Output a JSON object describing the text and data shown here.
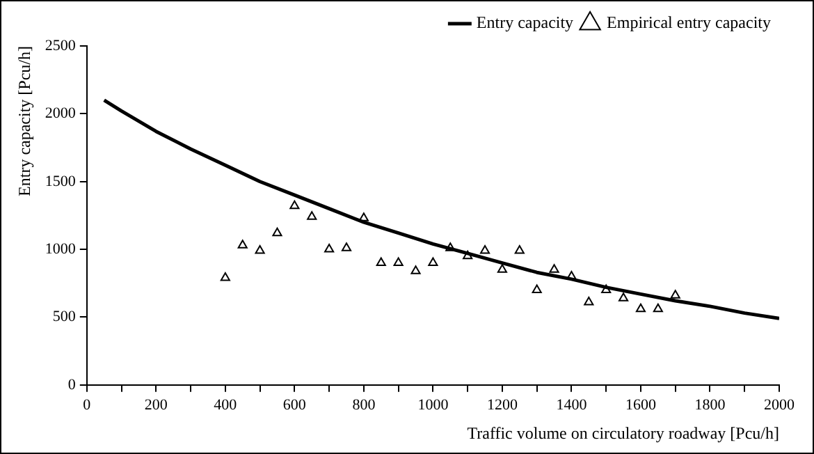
{
  "chart_data": {
    "type": "scatter",
    "xlabel": "Traffic volume on circulatory roadway [Pcu/h]",
    "ylabel": "Entry capacity [Pcu/h]",
    "series": [
      {
        "name": "Entry capacity",
        "type": "line",
        "color": "#000000",
        "marker": "none",
        "x": [
          50,
          100,
          200,
          300,
          400,
          500,
          600,
          700,
          800,
          900,
          1000,
          1100,
          1200,
          1300,
          1400,
          1500,
          1600,
          1700,
          1800,
          1900,
          2000
        ],
        "values": [
          2100,
          2020,
          1870,
          1740,
          1620,
          1500,
          1400,
          1300,
          1200,
          1120,
          1040,
          970,
          900,
          830,
          780,
          720,
          670,
          620,
          580,
          530,
          490
        ]
      },
      {
        "name": "Empirical entry capacity",
        "type": "scatter",
        "color": "#000000",
        "marker": "triangle",
        "x": [
          400,
          450,
          500,
          550,
          600,
          650,
          700,
          750,
          800,
          850,
          900,
          950,
          1000,
          1050,
          1100,
          1150,
          1200,
          1250,
          1300,
          1350,
          1400,
          1450,
          1500,
          1550,
          1600,
          1650,
          1700
        ],
        "values": [
          790,
          1030,
          990,
          1120,
          1320,
          1240,
          1000,
          1010,
          1230,
          900,
          900,
          840,
          900,
          1010,
          950,
          990,
          850,
          990,
          700,
          850,
          800,
          610,
          700,
          640,
          560,
          560,
          660
        ]
      }
    ],
    "xlim": [
      0,
      2000
    ],
    "xticks": [
      0,
      {
        "value": 100,
        "label": null
      },
      200,
      {
        "value": 300,
        "label": null
      },
      400,
      {
        "value": 500,
        "label": null
      },
      600,
      {
        "value": 700,
        "label": null
      },
      800,
      {
        "value": 900,
        "label": null
      },
      1000,
      {
        "value": 1100,
        "label": null
      },
      1200,
      {
        "value": 1300,
        "label": null
      },
      1400,
      {
        "value": 1500,
        "label": null
      },
      1600,
      {
        "value": 1700,
        "label": null
      },
      1800,
      {
        "value": 1900,
        "label": null
      },
      2000
    ],
    "ylim": [
      0,
      2500
    ],
    "yticks": [
      0,
      500,
      1000,
      1500,
      2000,
      2500
    ],
    "grid": false,
    "legend": "top right"
  }
}
